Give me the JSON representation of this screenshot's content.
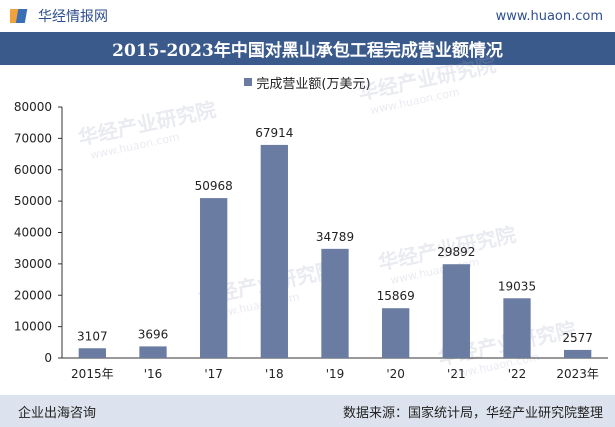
{
  "header": {
    "brand_name": "华经情报网",
    "site_url": "www.huaon.com",
    "title": "2015-2023年中国对黑山承包工程完成营业额情况"
  },
  "legend": {
    "series_label": "完成营业额(万美元)"
  },
  "footer": {
    "left_text": "企业出海咨询",
    "right_text": "数据来源：国家统计局，华经产业研究院整理"
  },
  "colors": {
    "bar": "#6b7ca3",
    "title_bg": "#3a5a8c",
    "footer_bg": "#dde3ee",
    "brand": "#2f4f8f"
  },
  "watermark": {
    "text": "华经产业研究院",
    "url": "www.huaon.com"
  },
  "chart_data": {
    "type": "bar",
    "categories": [
      "2015年",
      "'16",
      "'17",
      "'18",
      "'19",
      "'20",
      "'21",
      "'22",
      "2023年"
    ],
    "series": [
      {
        "name": "完成营业额(万美元)",
        "values": [
          3107,
          3696,
          50968,
          67914,
          34789,
          15869,
          29892,
          19035,
          2577
        ]
      }
    ],
    "ylim": [
      0,
      80000
    ],
    "yticks": [
      0,
      10000,
      20000,
      30000,
      40000,
      50000,
      60000,
      70000,
      80000
    ],
    "grid": false,
    "legend_position": "top-center"
  }
}
